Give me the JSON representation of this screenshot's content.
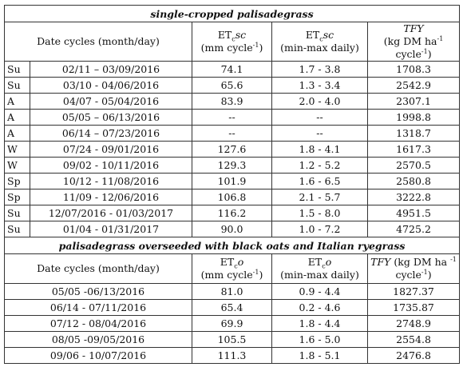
{
  "section1": {
    "title": "single-cropped palisadegrass",
    "headers": {
      "date": "Date cycles (month/day)",
      "et_name": "ET",
      "et_sub": "c",
      "et_var": "sc",
      "et_unit_pre": "(mm cycle",
      "et_unit_sup": "-1",
      "et_unit_post": ")",
      "et2_name": "ET",
      "et2_sub": "c",
      "et2_var": "sc",
      "et2_unit": "(min-max daily)",
      "tfy_name": "TFY",
      "tfy_unit_pre": "(kg DM ha",
      "tfy_unit_sup1": "-1",
      "tfy_unit_mid": " cycle",
      "tfy_unit_sup2": "-1",
      "tfy_unit_post": ")"
    },
    "rows": [
      {
        "season": "Su",
        "dates": "02/11 – 03/09/2016",
        "et": "74.1",
        "range": "1.7 - 3.8",
        "tfy": "1708.3"
      },
      {
        "season": "Su",
        "dates": "03/10 - 04/06/2016",
        "et": "65.6",
        "range": "1.3 - 3.4",
        "tfy": "2542.9"
      },
      {
        "season": "A",
        "dates": "04/07 - 05/04/2016",
        "et": "83.9",
        "range": "2.0 - 4.0",
        "tfy": "2307.1"
      },
      {
        "season": "A",
        "dates": "05/05 – 06/13/2016",
        "et": "--",
        "range": "--",
        "tfy": "1998.8"
      },
      {
        "season": "A",
        "dates": "06/14 – 07/23/2016",
        "et": "--",
        "range": "--",
        "tfy": "1318.7"
      },
      {
        "season": "W",
        "dates": "07/24 - 09/01/2016",
        "et": "127.6",
        "range": "1.8 - 4.1",
        "tfy": "1617.3"
      },
      {
        "season": "W",
        "dates": "09/02 - 10/11/2016",
        "et": "129.3",
        "range": "1.2 - 5.2",
        "tfy": "2570.5"
      },
      {
        "season": "Sp",
        "dates": "10/12 - 11/08/2016",
        "et": "101.9",
        "range": "1.6 - 6.5",
        "tfy": "2580.8"
      },
      {
        "season": "Sp",
        "dates": "11/09 - 12/06/2016",
        "et": "106.8",
        "range": "2.1 - 5.7",
        "tfy": "3222.8"
      },
      {
        "season": "Su",
        "dates": "12/07/2016 - 01/03/2017",
        "et": "116.2",
        "range": "1.5 - 8.0",
        "tfy": "4951.5"
      },
      {
        "season": "Su",
        "dates": "01/04 - 01/31/2017",
        "et": "90.0",
        "range": "1.0 - 7.2",
        "tfy": "4725.2"
      }
    ]
  },
  "section2": {
    "title": "palisadegrass overseeded with black oats and Italian ryegrass",
    "headers": {
      "date": "Date cycles (month/day)",
      "et_name": "ET",
      "et_sub": "c",
      "et_var": "o",
      "et_unit_pre": "(mm cycle",
      "et_unit_sup": "-1",
      "et_unit_post": ")",
      "et2_name": "ET",
      "et2_sub": "c",
      "et2_var": "o",
      "et2_unit": "(min-max daily)",
      "tfy_name": "TFY",
      "tfy_unit_line1": " (kg DM ha ",
      "tfy_unit_sup1": "-1",
      "tfy_unit_line2": "cycle",
      "tfy_unit_sup2": "-1",
      "tfy_unit_post": ")"
    },
    "rows": [
      {
        "dates": "05/05 -06/13/2016",
        "et": "81.0",
        "range": "0.9 - 4.4",
        "tfy": "1827.37"
      },
      {
        "dates": "06/14 - 07/11/2016",
        "et": "65.4",
        "range": "0.2 - 4.6",
        "tfy": "1735.87"
      },
      {
        "dates": "07/12 - 08/04/2016",
        "et": "69.9",
        "range": "1.8 - 4.4",
        "tfy": "2748.9"
      },
      {
        "dates": "08/05 -09/05/2016",
        "et": "105.5",
        "range": "1.6 - 5.0",
        "tfy": "2554.8"
      },
      {
        "dates": "09/06 - 10/07/2016",
        "et": "111.3",
        "range": "1.8 - 5.1",
        "tfy": "2476.8"
      }
    ]
  }
}
